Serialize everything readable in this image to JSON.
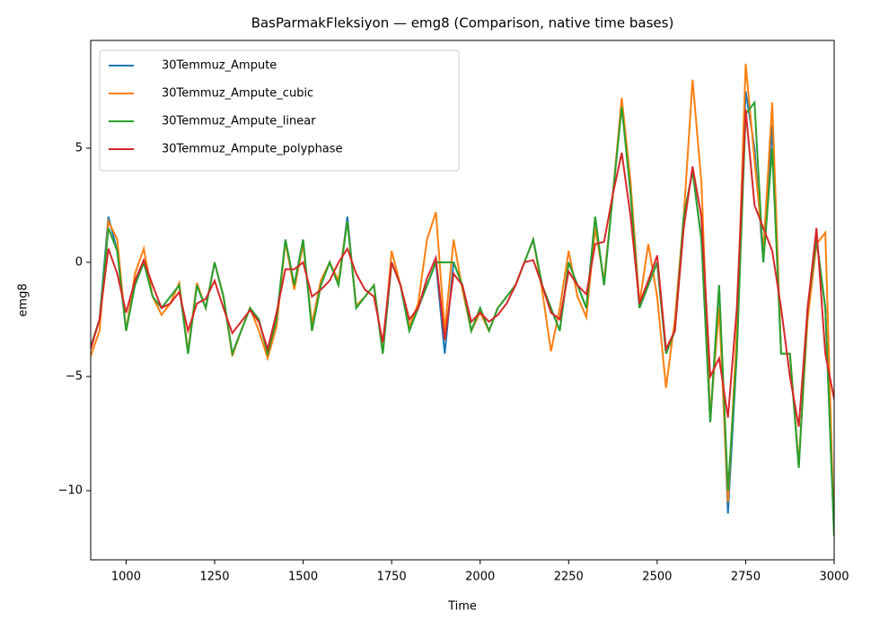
{
  "chart_data": {
    "type": "line",
    "title": "BasParmakFleksiyon — emg8 (Comparison, native time bases)",
    "x_label": "Time",
    "y_label": "emg8",
    "x": [
      900,
      925,
      950,
      975,
      1000,
      1025,
      1050,
      1075,
      1100,
      1125,
      1150,
      1175,
      1200,
      1225,
      1250,
      1275,
      1300,
      1325,
      1350,
      1375,
      1400,
      1425,
      1450,
      1475,
      1500,
      1525,
      1550,
      1575,
      1600,
      1625,
      1650,
      1675,
      1700,
      1725,
      1750,
      1775,
      1800,
      1825,
      1850,
      1875,
      1900,
      1925,
      1950,
      1975,
      2000,
      2025,
      2050,
      2075,
      2100,
      2125,
      2150,
      2175,
      2200,
      2225,
      2250,
      2275,
      2300,
      2325,
      2350,
      2375,
      2400,
      2425,
      2450,
      2475,
      2500,
      2525,
      2550,
      2575,
      2600,
      2625,
      2650,
      2675,
      2700,
      2725,
      2750,
      2775,
      2800,
      2825,
      2850,
      2875,
      2900,
      2925,
      2950,
      2975,
      3000
    ],
    "series": [
      {
        "name": "30Temmuz_Ampute",
        "color": "#1f77b4",
        "values": [
          -3.7,
          -2.5,
          2.0,
          0.5,
          -3.0,
          -1.0,
          0.0,
          -1.5,
          -2.0,
          -1.5,
          -1.0,
          -4.0,
          -1.0,
          -2.0,
          0.0,
          -1.5,
          -4.0,
          -3.0,
          -2.0,
          -2.5,
          -4.0,
          -2.5,
          1.0,
          -1.0,
          1.0,
          -3.0,
          -1.0,
          0.0,
          -1.0,
          2.0,
          -2.0,
          -1.5,
          -1.0,
          -4.0,
          0.0,
          -1.0,
          -3.0,
          -2.0,
          -1.0,
          0.0,
          -4.0,
          0.0,
          -1.0,
          -3.0,
          -2.0,
          -3.0,
          -2.0,
          -1.5,
          -1.0,
          0.0,
          1.0,
          -1.0,
          -2.0,
          -3.0,
          0.0,
          -1.0,
          -2.0,
          2.0,
          -1.0,
          3.0,
          7.0,
          3.0,
          -2.0,
          -1.0,
          0.0,
          -4.0,
          -3.0,
          2.0,
          4.0,
          1.0,
          -7.0,
          -1.0,
          -11.0,
          -4.0,
          7.5,
          5.0,
          0.0,
          6.0,
          -4.0,
          -4.0,
          -9.0,
          -2.0,
          1.0,
          -2.0,
          -12.0
        ]
      },
      {
        "name": "30Temmuz_Ampute_cubic",
        "color": "#ff7f0e",
        "values": [
          -4.1,
          -3.0,
          1.8,
          1.0,
          -3.0,
          -0.5,
          0.6,
          -1.5,
          -2.3,
          -1.8,
          -0.9,
          -3.9,
          -0.9,
          -2.0,
          0.0,
          -1.5,
          -4.1,
          -3.0,
          -2.0,
          -3.0,
          -4.2,
          -2.8,
          0.9,
          -1.2,
          0.8,
          -2.7,
          -0.8,
          0.0,
          -0.8,
          1.8,
          -1.9,
          -1.5,
          -1.0,
          -4.0,
          0.5,
          -1.0,
          -2.8,
          -1.8,
          1.0,
          2.2,
          -3.0,
          1.0,
          -1.2,
          -3.0,
          -2.2,
          -3.0,
          -2.0,
          -1.5,
          -1.0,
          0.0,
          1.0,
          -1.2,
          -3.9,
          -2.0,
          0.5,
          -1.5,
          -2.4,
          1.5,
          -0.8,
          3.0,
          7.2,
          3.5,
          -1.8,
          0.8,
          -1.5,
          -5.5,
          -2.5,
          2.0,
          8.0,
          3.5,
          -6.8,
          -2.0,
          -10.5,
          -3.0,
          8.7,
          4.5,
          0.5,
          7.0,
          -4.0,
          -4.0,
          -8.8,
          -2.5,
          0.8,
          1.3,
          -12.0
        ]
      },
      {
        "name": "30Temmuz_Ampute_linear",
        "color": "#2ca02c",
        "values": [
          -3.7,
          -2.5,
          1.5,
          0.5,
          -3.0,
          -1.0,
          0.0,
          -1.5,
          -2.0,
          -1.5,
          -1.0,
          -4.0,
          -1.0,
          -2.0,
          0.0,
          -1.5,
          -4.0,
          -3.0,
          -2.0,
          -2.5,
          -4.0,
          -2.5,
          1.0,
          -1.0,
          1.0,
          -3.0,
          -1.0,
          0.0,
          -1.0,
          1.8,
          -2.0,
          -1.5,
          -1.0,
          -4.0,
          0.0,
          -1.0,
          -3.0,
          -2.0,
          -1.0,
          0.0,
          0.0,
          0.0,
          -1.0,
          -3.0,
          -2.0,
          -3.0,
          -2.0,
          -1.5,
          -1.0,
          0.0,
          1.0,
          -1.0,
          -2.0,
          -3.0,
          0.0,
          -1.0,
          -2.0,
          2.0,
          -1.0,
          3.0,
          6.8,
          3.0,
          -2.0,
          -1.0,
          0.0,
          -4.0,
          -3.0,
          2.0,
          4.0,
          1.0,
          -7.0,
          -1.0,
          -10.0,
          -4.0,
          6.5,
          7.0,
          0.0,
          5.0,
          -4.0,
          -4.0,
          -9.0,
          -2.0,
          1.0,
          -2.0,
          -12.0
        ]
      },
      {
        "name": "30Temmuz_Ampute_polyphase",
        "color": "#d62728",
        "values": [
          -3.8,
          -2.5,
          0.6,
          -0.5,
          -2.2,
          -0.8,
          0.1,
          -1.0,
          -2.0,
          -1.8,
          -1.3,
          -3.0,
          -1.8,
          -1.6,
          -0.8,
          -2.0,
          -3.1,
          -2.6,
          -2.1,
          -2.6,
          -3.8,
          -2.2,
          -0.3,
          -0.3,
          0.0,
          -1.5,
          -1.2,
          -0.8,
          0.0,
          0.6,
          -0.5,
          -1.2,
          -1.5,
          -3.5,
          0.0,
          -1.0,
          -2.5,
          -2.0,
          -0.7,
          0.2,
          -3.4,
          -0.5,
          -1.0,
          -2.6,
          -2.2,
          -2.6,
          -2.3,
          -1.8,
          -1.0,
          0.0,
          0.1,
          -1.0,
          -2.2,
          -2.5,
          -0.4,
          -1.0,
          -1.4,
          0.8,
          0.9,
          3.0,
          4.8,
          2.0,
          -1.8,
          -0.8,
          0.3,
          -3.8,
          -3.0,
          1.5,
          4.2,
          2.0,
          -5.0,
          -4.2,
          -6.8,
          -2.0,
          6.7,
          2.5,
          1.5,
          0.5,
          -2.0,
          -5.0,
          -7.2,
          -2.0,
          1.5,
          -4.0,
          -6.0
        ]
      }
    ],
    "xlim": [
      900,
      3000
    ],
    "xticks": [
      1000,
      1250,
      1500,
      1750,
      2000,
      2250,
      2500,
      2750,
      3000
    ],
    "ylim": [
      -13.03,
      9.72
    ],
    "yticks": [
      {
        "value": -10,
        "label": "−10"
      },
      {
        "value": -5,
        "label": "−5"
      },
      0,
      5
    ],
    "legend": "upper left",
    "grid": false
  }
}
